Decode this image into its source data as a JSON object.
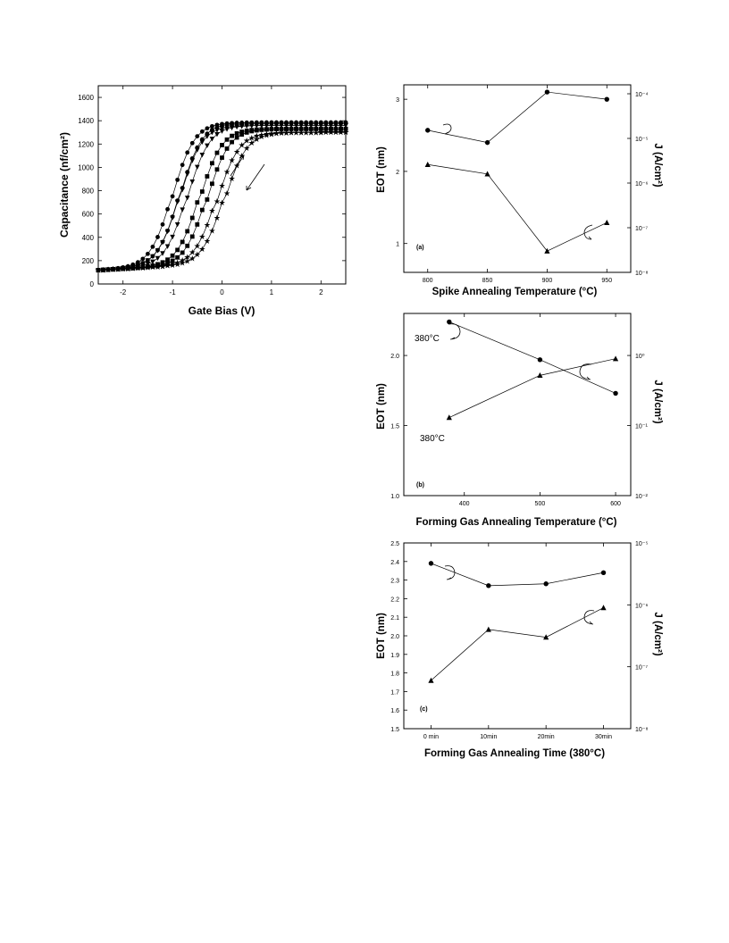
{
  "chart_data": [
    {
      "type": "scatter",
      "xlabel": "Gate Bias (V)",
      "ylabel": "Capacitance (nf/cm²)",
      "xlim": [
        -2.5,
        2.5
      ],
      "ylim": [
        0,
        1700
      ],
      "xticks": [
        "-2",
        "-1",
        "0",
        "1",
        "2"
      ],
      "yticks": [
        "0",
        "200",
        "400",
        "600",
        "800",
        "1000",
        "1200",
        "1400",
        "1600"
      ],
      "series": [
        {
          "marker": "circle",
          "x_mid_up": -1.0,
          "x_mid_down": -0.85,
          "c_min": 118,
          "c_max": 1385
        },
        {
          "marker": "triangle-down",
          "x_mid_up": -0.85,
          "x_mid_down": -0.7,
          "c_min": 118,
          "c_max": 1360
        },
        {
          "marker": "square",
          "x_mid_up": -0.45,
          "x_mid_down": -0.3,
          "c_min": 118,
          "c_max": 1330
        },
        {
          "marker": "star",
          "x_mid_up": -0.1,
          "x_mid_down": 0.05,
          "c_min": 118,
          "c_max": 1300
        }
      ],
      "grid": false
    },
    {
      "type": "line",
      "panel": "(a)",
      "xlabel": "Spike Annealing Temperature (°C)",
      "ylabel": "EOT (nm)",
      "y2label": "J (A/cm²)",
      "x": [
        800,
        850,
        900,
        950
      ],
      "xlim": [
        780,
        970
      ],
      "ylim": [
        0.6,
        3.2
      ],
      "xticks": [
        "800",
        "850",
        "900",
        "950"
      ],
      "yticks": [
        "1",
        "2",
        "3"
      ],
      "y2_scale": "log",
      "y2lim_exp": [
        -8,
        -3.8
      ],
      "y2ticks": [
        "10⁻⁸",
        "10⁻⁷",
        "10⁻⁶",
        "10⁻⁵",
        "10⁻⁴"
      ],
      "series": [
        {
          "axis": "left",
          "marker": "circle",
          "values": [
            2.57,
            2.4,
            3.1,
            3.0
          ]
        },
        {
          "axis": "right",
          "marker": "triangle",
          "values": [
            2.6e-06,
            1.6e-06,
            3e-08,
            1.3e-07
          ]
        }
      ],
      "grid": false
    },
    {
      "type": "line",
      "panel": "(b)",
      "xlabel": "Forming Gas Annealing Temperature (°C)",
      "ylabel": "EOT (nm)",
      "y2label": "J (A/cm²)",
      "x": [
        380,
        500,
        600
      ],
      "xlim": [
        320,
        620
      ],
      "ylim": [
        1.0,
        2.3
      ],
      "xticks": [
        "400",
        "500",
        "600"
      ],
      "yticks": [
        "1.0",
        "1.5",
        "2.0"
      ],
      "y2_scale": "log",
      "y2lim_exp": [
        -2,
        0.6
      ],
      "y2ticks": [
        "10⁻²",
        "10⁻¹",
        "10⁰"
      ],
      "annotations": [
        "380°C",
        "380°C"
      ],
      "series": [
        {
          "axis": "left",
          "marker": "circle",
          "values": [
            2.24,
            1.97,
            1.73
          ]
        },
        {
          "axis": "right",
          "marker": "triangle",
          "values": [
            0.13,
            0.52,
            0.9
          ]
        }
      ],
      "grid": false
    },
    {
      "type": "line",
      "panel": "(c)",
      "xlabel": "Forming Gas Annealing Time (380°C)",
      "ylabel": "EOT (nm)",
      "y2label": "J (A/cm²)",
      "categories": [
        "0 min",
        "10min",
        "20min",
        "30min"
      ],
      "ylim": [
        1.5,
        2.5
      ],
      "yticks": [
        "1.5",
        "1.6",
        "1.7",
        "1.8",
        "1.9",
        "2.0",
        "2.1",
        "2.2",
        "2.3",
        "2.4",
        "2.5"
      ],
      "y2_scale": "log",
      "y2lim_exp": [
        -8,
        -5
      ],
      "y2ticks": [
        "10⁻⁸",
        "10⁻⁷",
        "10⁻⁶",
        "10⁻⁵"
      ],
      "series": [
        {
          "axis": "left",
          "marker": "circle",
          "values": [
            2.39,
            2.27,
            2.28,
            2.34
          ]
        },
        {
          "axis": "right",
          "marker": "triangle",
          "values": [
            6e-08,
            4e-07,
            3e-07,
            9e-07
          ]
        }
      ],
      "grid": false
    }
  ]
}
